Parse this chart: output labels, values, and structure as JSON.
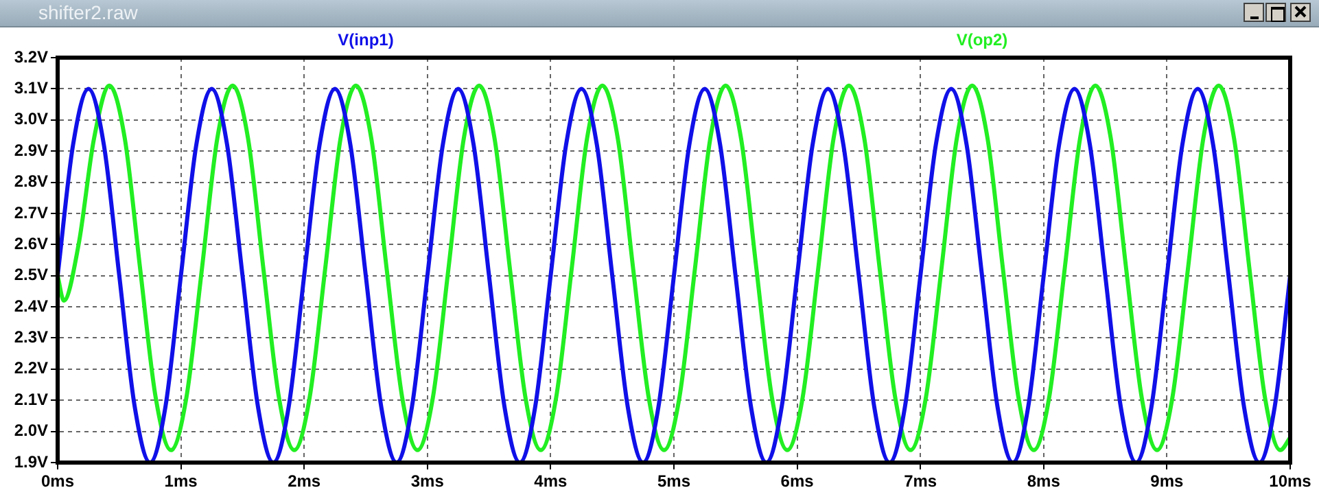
{
  "chart_data": {
    "type": "line",
    "title": "shifter2.raw",
    "xlim": [
      0,
      10
    ],
    "xticks": [
      {
        "value": 0,
        "label": "0ms"
      },
      {
        "value": 1,
        "label": "1ms"
      },
      {
        "value": 2,
        "label": "2ms"
      },
      {
        "value": 3,
        "label": "3ms"
      },
      {
        "value": 4,
        "label": "4ms"
      },
      {
        "value": 5,
        "label": "5ms"
      },
      {
        "value": 6,
        "label": "6ms"
      },
      {
        "value": 7,
        "label": "7ms"
      },
      {
        "value": 8,
        "label": "8ms"
      },
      {
        "value": 9,
        "label": "9ms"
      },
      {
        "value": 10,
        "label": "10ms"
      }
    ],
    "ylim": [
      1.9,
      3.2
    ],
    "yticks": [
      {
        "value": 1.9,
        "label": "1.9V"
      },
      {
        "value": 2.0,
        "label": "2.0V"
      },
      {
        "value": 2.1,
        "label": "2.1V"
      },
      {
        "value": 2.2,
        "label": "2.2V"
      },
      {
        "value": 2.3,
        "label": "2.3V"
      },
      {
        "value": 2.4,
        "label": "2.4V"
      },
      {
        "value": 2.5,
        "label": "2.5V"
      },
      {
        "value": 2.6,
        "label": "2.6V"
      },
      {
        "value": 2.7,
        "label": "2.7V"
      },
      {
        "value": 2.8,
        "label": "2.8V"
      },
      {
        "value": 2.9,
        "label": "2.9V"
      },
      {
        "value": 3.0,
        "label": "3.0V"
      },
      {
        "value": 3.1,
        "label": "3.1V"
      },
      {
        "value": 3.2,
        "label": "3.2V"
      }
    ],
    "grid": true,
    "legend": "top",
    "line_style": "solid",
    "marker": "none",
    "series": [
      {
        "name": "V(inp1)",
        "color": "#1010e8",
        "x": [
          0,
          0.125,
          0.25,
          0.375,
          0.5,
          0.625,
          0.75,
          0.875,
          1,
          1.125,
          1.25,
          1.375,
          1.5,
          1.625,
          1.75,
          1.875,
          2,
          2.125,
          2.25,
          2.375,
          2.5,
          2.625,
          2.75,
          2.875,
          3,
          3.125,
          3.25,
          3.375,
          3.5,
          3.625,
          3.75,
          3.875,
          4,
          4.125,
          4.25,
          4.375,
          4.5,
          4.625,
          4.75,
          4.875,
          5,
          5.125,
          5.25,
          5.375,
          5.5,
          5.625,
          5.75,
          5.875,
          6,
          6.125,
          6.25,
          6.375,
          6.5,
          6.625,
          6.75,
          6.875,
          7,
          7.125,
          7.25,
          7.375,
          7.5,
          7.625,
          7.75,
          7.875,
          8,
          8.125,
          8.25,
          8.375,
          8.5,
          8.625,
          8.75,
          8.875,
          9,
          9.125,
          9.25,
          9.375,
          9.5,
          9.625,
          9.75,
          9.875,
          10
        ],
        "values": [
          2.5,
          2.92,
          3.1,
          2.92,
          2.5,
          2.08,
          1.9,
          2.08,
          2.5,
          2.92,
          3.1,
          2.92,
          2.5,
          2.08,
          1.9,
          2.08,
          2.5,
          2.92,
          3.1,
          2.92,
          2.5,
          2.08,
          1.9,
          2.08,
          2.5,
          2.92,
          3.1,
          2.92,
          2.5,
          2.08,
          1.9,
          2.08,
          2.5,
          2.92,
          3.1,
          2.92,
          2.5,
          2.08,
          1.9,
          2.08,
          2.5,
          2.92,
          3.1,
          2.92,
          2.5,
          2.08,
          1.9,
          2.08,
          2.5,
          2.92,
          3.1,
          2.92,
          2.5,
          2.08,
          1.9,
          2.08,
          2.5,
          2.92,
          3.1,
          2.92,
          2.5,
          2.08,
          1.9,
          2.08,
          2.5,
          2.92,
          3.1,
          2.92,
          2.5,
          2.08,
          1.9,
          2.08,
          2.5,
          2.92,
          3.1,
          2.92,
          2.5,
          2.08,
          1.9,
          2.08,
          2.5
        ]
      },
      {
        "name": "V(op2)",
        "color": "#22ee22",
        "x": [
          0,
          0.05,
          0.17,
          0.295,
          0.42,
          0.545,
          0.67,
          0.795,
          0.92,
          1.045,
          1.17,
          1.295,
          1.42,
          1.545,
          1.67,
          1.795,
          1.92,
          2.045,
          2.17,
          2.295,
          2.42,
          2.545,
          2.67,
          2.795,
          2.92,
          3.045,
          3.17,
          3.295,
          3.42,
          3.545,
          3.67,
          3.795,
          3.92,
          4.045,
          4.17,
          4.295,
          4.42,
          4.545,
          4.67,
          4.795,
          4.92,
          5.045,
          5.17,
          5.295,
          5.42,
          5.545,
          5.67,
          5.795,
          5.92,
          6.045,
          6.17,
          6.295,
          6.42,
          6.545,
          6.67,
          6.795,
          6.92,
          7.045,
          7.17,
          7.295,
          7.42,
          7.545,
          7.67,
          7.795,
          7.92,
          8.045,
          8.17,
          8.295,
          8.42,
          8.545,
          8.67,
          8.795,
          8.92,
          9.045,
          9.17,
          9.295,
          9.42,
          9.545,
          9.67,
          9.795,
          9.92,
          10
        ],
        "values": [
          2.5,
          2.42,
          2.6,
          2.94,
          3.11,
          2.94,
          2.52,
          2.11,
          1.94,
          2.11,
          2.52,
          2.94,
          3.11,
          2.94,
          2.52,
          2.11,
          1.94,
          2.11,
          2.52,
          2.94,
          3.11,
          2.94,
          2.52,
          2.11,
          1.94,
          2.11,
          2.52,
          2.94,
          3.11,
          2.94,
          2.52,
          2.11,
          1.94,
          2.11,
          2.52,
          2.94,
          3.11,
          2.94,
          2.52,
          2.11,
          1.94,
          2.11,
          2.52,
          2.94,
          3.11,
          2.94,
          2.52,
          2.11,
          1.94,
          2.11,
          2.52,
          2.94,
          3.11,
          2.94,
          2.52,
          2.11,
          1.94,
          2.11,
          2.52,
          2.94,
          3.11,
          2.94,
          2.52,
          2.11,
          1.94,
          2.11,
          2.52,
          2.94,
          3.11,
          2.94,
          2.52,
          2.11,
          1.94,
          2.11,
          2.52,
          2.94,
          3.11,
          2.94,
          2.52,
          2.11,
          1.94,
          1.98
        ]
      }
    ]
  }
}
